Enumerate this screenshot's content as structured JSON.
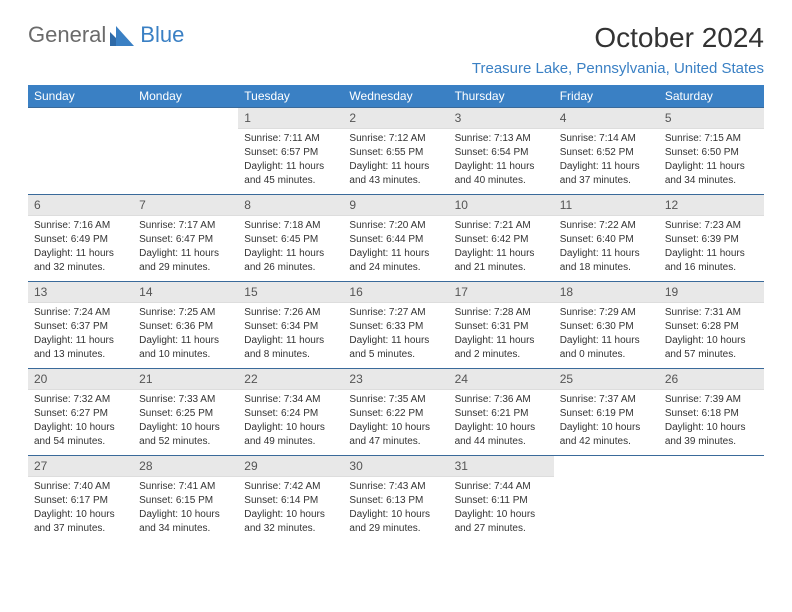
{
  "brand": {
    "part1": "General",
    "part2": "Blue"
  },
  "title": "October 2024",
  "location": "Treasure Lake, Pennsylvania, United States",
  "colors": {
    "header_bg": "#3a80c4",
    "header_text": "#ffffff",
    "daynum_bg": "#e8e8e8",
    "row_border": "#3a6a9a",
    "brand_gray": "#6b6b6b",
    "brand_blue": "#3a80c4"
  },
  "isoWeekdays": [
    "Sunday",
    "Monday",
    "Tuesday",
    "Wednesday",
    "Thursday",
    "Friday",
    "Saturday"
  ],
  "firstDayOffset": 2,
  "days": [
    {
      "n": 1,
      "sunrise": "7:11 AM",
      "sunset": "6:57 PM",
      "daylight": "11 hours and 45 minutes."
    },
    {
      "n": 2,
      "sunrise": "7:12 AM",
      "sunset": "6:55 PM",
      "daylight": "11 hours and 43 minutes."
    },
    {
      "n": 3,
      "sunrise": "7:13 AM",
      "sunset": "6:54 PM",
      "daylight": "11 hours and 40 minutes."
    },
    {
      "n": 4,
      "sunrise": "7:14 AM",
      "sunset": "6:52 PM",
      "daylight": "11 hours and 37 minutes."
    },
    {
      "n": 5,
      "sunrise": "7:15 AM",
      "sunset": "6:50 PM",
      "daylight": "11 hours and 34 minutes."
    },
    {
      "n": 6,
      "sunrise": "7:16 AM",
      "sunset": "6:49 PM",
      "daylight": "11 hours and 32 minutes."
    },
    {
      "n": 7,
      "sunrise": "7:17 AM",
      "sunset": "6:47 PM",
      "daylight": "11 hours and 29 minutes."
    },
    {
      "n": 8,
      "sunrise": "7:18 AM",
      "sunset": "6:45 PM",
      "daylight": "11 hours and 26 minutes."
    },
    {
      "n": 9,
      "sunrise": "7:20 AM",
      "sunset": "6:44 PM",
      "daylight": "11 hours and 24 minutes."
    },
    {
      "n": 10,
      "sunrise": "7:21 AM",
      "sunset": "6:42 PM",
      "daylight": "11 hours and 21 minutes."
    },
    {
      "n": 11,
      "sunrise": "7:22 AM",
      "sunset": "6:40 PM",
      "daylight": "11 hours and 18 minutes."
    },
    {
      "n": 12,
      "sunrise": "7:23 AM",
      "sunset": "6:39 PM",
      "daylight": "11 hours and 16 minutes."
    },
    {
      "n": 13,
      "sunrise": "7:24 AM",
      "sunset": "6:37 PM",
      "daylight": "11 hours and 13 minutes."
    },
    {
      "n": 14,
      "sunrise": "7:25 AM",
      "sunset": "6:36 PM",
      "daylight": "11 hours and 10 minutes."
    },
    {
      "n": 15,
      "sunrise": "7:26 AM",
      "sunset": "6:34 PM",
      "daylight": "11 hours and 8 minutes."
    },
    {
      "n": 16,
      "sunrise": "7:27 AM",
      "sunset": "6:33 PM",
      "daylight": "11 hours and 5 minutes."
    },
    {
      "n": 17,
      "sunrise": "7:28 AM",
      "sunset": "6:31 PM",
      "daylight": "11 hours and 2 minutes."
    },
    {
      "n": 18,
      "sunrise": "7:29 AM",
      "sunset": "6:30 PM",
      "daylight": "11 hours and 0 minutes."
    },
    {
      "n": 19,
      "sunrise": "7:31 AM",
      "sunset": "6:28 PM",
      "daylight": "10 hours and 57 minutes."
    },
    {
      "n": 20,
      "sunrise": "7:32 AM",
      "sunset": "6:27 PM",
      "daylight": "10 hours and 54 minutes."
    },
    {
      "n": 21,
      "sunrise": "7:33 AM",
      "sunset": "6:25 PM",
      "daylight": "10 hours and 52 minutes."
    },
    {
      "n": 22,
      "sunrise": "7:34 AM",
      "sunset": "6:24 PM",
      "daylight": "10 hours and 49 minutes."
    },
    {
      "n": 23,
      "sunrise": "7:35 AM",
      "sunset": "6:22 PM",
      "daylight": "10 hours and 47 minutes."
    },
    {
      "n": 24,
      "sunrise": "7:36 AM",
      "sunset": "6:21 PM",
      "daylight": "10 hours and 44 minutes."
    },
    {
      "n": 25,
      "sunrise": "7:37 AM",
      "sunset": "6:19 PM",
      "daylight": "10 hours and 42 minutes."
    },
    {
      "n": 26,
      "sunrise": "7:39 AM",
      "sunset": "6:18 PM",
      "daylight": "10 hours and 39 minutes."
    },
    {
      "n": 27,
      "sunrise": "7:40 AM",
      "sunset": "6:17 PM",
      "daylight": "10 hours and 37 minutes."
    },
    {
      "n": 28,
      "sunrise": "7:41 AM",
      "sunset": "6:15 PM",
      "daylight": "10 hours and 34 minutes."
    },
    {
      "n": 29,
      "sunrise": "7:42 AM",
      "sunset": "6:14 PM",
      "daylight": "10 hours and 32 minutes."
    },
    {
      "n": 30,
      "sunrise": "7:43 AM",
      "sunset": "6:13 PM",
      "daylight": "10 hours and 29 minutes."
    },
    {
      "n": 31,
      "sunrise": "7:44 AM",
      "sunset": "6:11 PM",
      "daylight": "10 hours and 27 minutes."
    }
  ],
  "labels": {
    "sunrise": "Sunrise:",
    "sunset": "Sunset:",
    "daylight": "Daylight:"
  }
}
